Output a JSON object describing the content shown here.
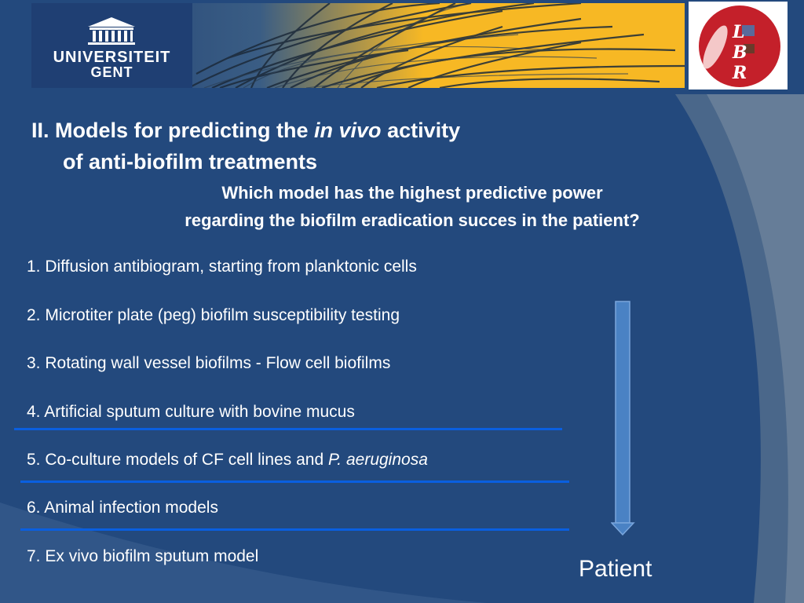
{
  "logos": {
    "ugent_line1": "UNIVERSITEIT",
    "ugent_line2": "GENT",
    "lbr_letters": [
      "L",
      "B",
      "R"
    ]
  },
  "title": {
    "line1_pre": "II. Models for predicting the ",
    "line1_italic": "in vivo",
    "line1_post": " activity",
    "line2": "of anti-biofilm treatments"
  },
  "subtitle": {
    "line1": "Which model has the highest predictive power",
    "line2": "regarding the biofilm eradication succes in the patient?"
  },
  "items": [
    "1. Diffusion antibiogram, starting from planktonic cells",
    "2. Microtiter plate (peg) biofilm susceptibility testing",
    "3. Rotating wall vessel biofilms - Flow cell biofilms",
    "4. Artificial sputum culture with bovine mucus",
    "5. Co-culture models of CF cell lines and ",
    "6. Animal infection models",
    "7. Ex vivo biofilm sputum model"
  ],
  "item5_italic": "P. aeruginosa",
  "arrow_label": "Patient",
  "colors": {
    "background": "#23497d",
    "banner": "#f7b824",
    "separator": "#0a5fe0",
    "arrow": "#4a82c4"
  }
}
